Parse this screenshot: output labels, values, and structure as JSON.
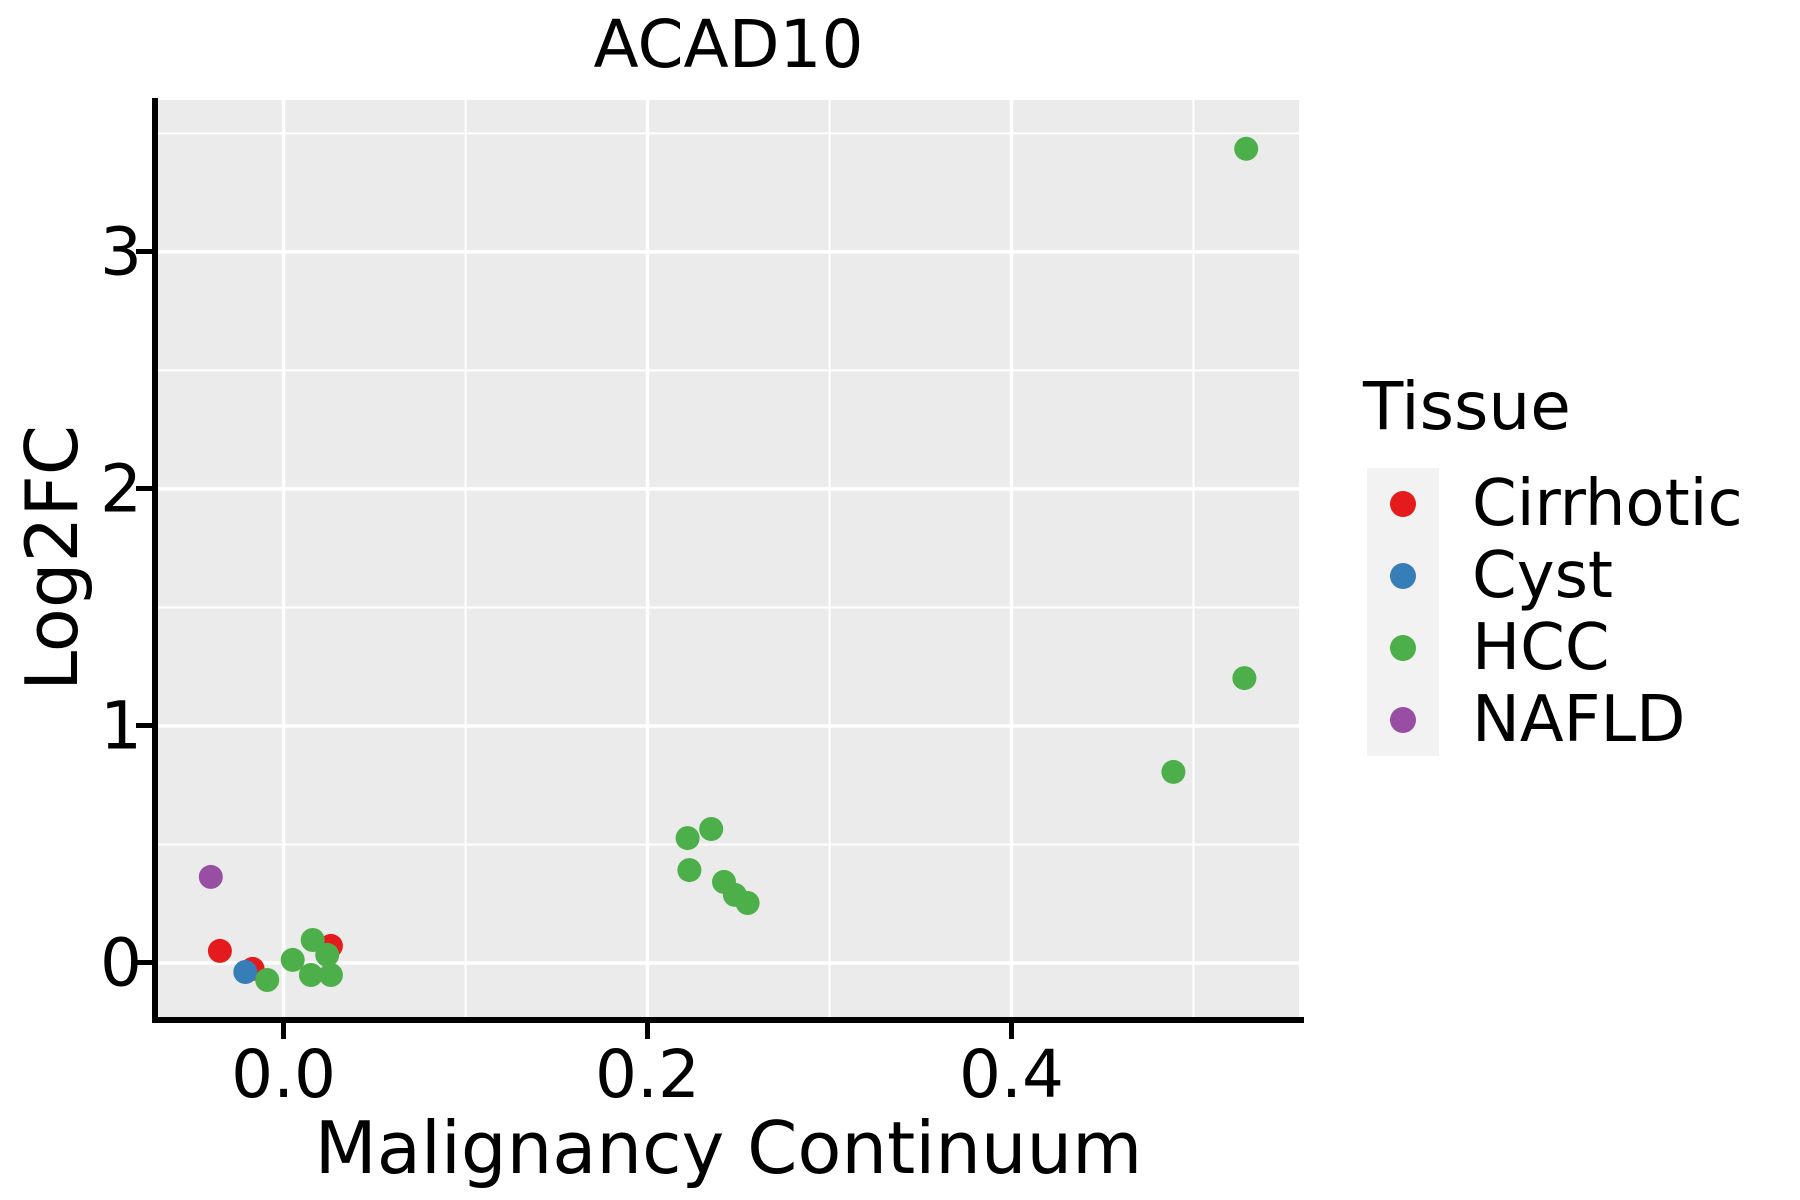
{
  "chart_data": {
    "type": "scatter",
    "title": "ACAD10",
    "xlabel": "Malignancy Continuum",
    "ylabel": "Log2FC",
    "xlim": [
      -0.069,
      0.558
    ],
    "ylim": [
      -0.228,
      3.641
    ],
    "grid": true,
    "panel_background": "#EBEBEB",
    "gridline_color": "#FFFFFF",
    "x_axis": {
      "tick_values": [
        0.0,
        0.2,
        0.4
      ],
      "tick_labels": [
        "0.0",
        "0.2",
        "0.4"
      ],
      "minor_tick_values": [
        0.1,
        0.3,
        0.5
      ]
    },
    "y_axis": {
      "tick_values": [
        0,
        1,
        2,
        3
      ],
      "tick_labels": [
        "0",
        "1",
        "2",
        "3"
      ],
      "minor_tick_values": [
        0.5,
        1.5,
        2.5,
        3.5
      ]
    },
    "legend": {
      "title": "Tissue",
      "position": "right",
      "entries": [
        {
          "label": "Cirrhotic",
          "color": "#E41A1C"
        },
        {
          "label": "Cyst",
          "color": "#377EB8"
        },
        {
          "label": "HCC",
          "color": "#4DAF4A"
        },
        {
          "label": "NAFLD",
          "color": "#984EA3"
        }
      ]
    },
    "series": [
      {
        "name": "Cirrhotic",
        "color": "#E41A1C",
        "points": [
          [
            -0.035,
            0.051
          ],
          [
            -0.017,
            -0.025
          ],
          [
            0.026,
            0.072
          ]
        ]
      },
      {
        "name": "Cyst",
        "color": "#377EB8",
        "points": [
          [
            -0.021,
            -0.038
          ]
        ]
      },
      {
        "name": "NAFLD",
        "color": "#984EA3",
        "points": [
          [
            -0.04,
            0.363
          ]
        ]
      },
      {
        "name": "HCC",
        "color": "#4DAF4A",
        "points": [
          [
            -0.009,
            -0.072
          ],
          [
            0.005,
            0.013
          ],
          [
            0.024,
            0.034
          ],
          [
            0.016,
            0.097
          ],
          [
            0.015,
            -0.051
          ],
          [
            0.026,
            -0.051
          ],
          [
            0.222,
            0.527
          ],
          [
            0.235,
            0.565
          ],
          [
            0.223,
            0.392
          ],
          [
            0.242,
            0.342
          ],
          [
            0.248,
            0.287
          ],
          [
            0.255,
            0.253
          ],
          [
            0.489,
            0.806
          ],
          [
            0.528,
            1.202
          ],
          [
            0.529,
            3.435
          ]
        ]
      }
    ]
  }
}
